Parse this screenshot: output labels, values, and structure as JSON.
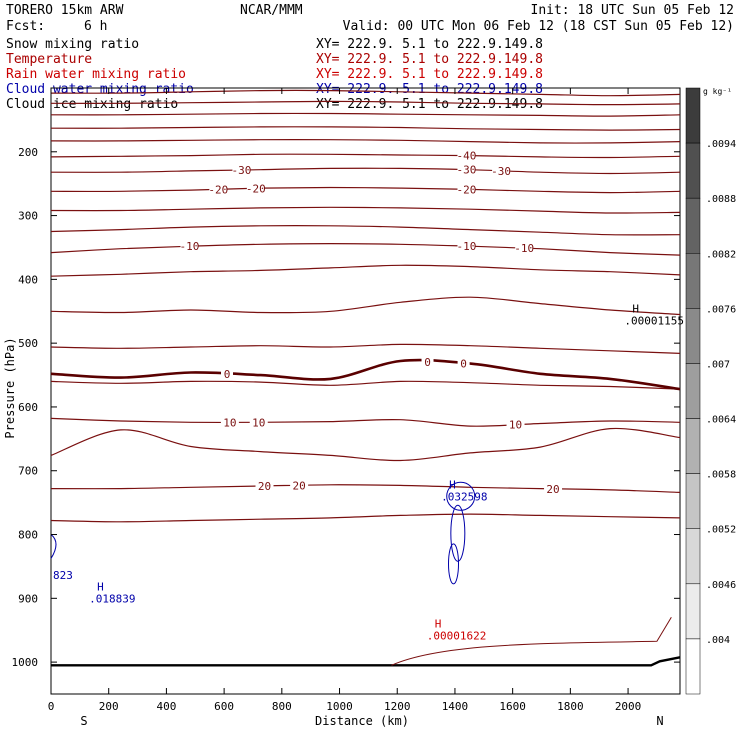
{
  "header": {
    "model": "TORERO  15km ARW",
    "org": "NCAR/MMM",
    "init": "Init: 18 UTC Sun 05 Feb 12",
    "fcst_label": "Fcst:",
    "fcst_value": "6 h",
    "valid": "Valid: 00 UTC Mon 06 Feb 12 (18 CST Sun 05 Feb 12)"
  },
  "legend": [
    {
      "name": "Snow mixing ratio",
      "color": "#000000",
      "xy": "XY= 222.9.  5.1 to 222.9.149.8"
    },
    {
      "name": "Temperature",
      "color": "#aa0000",
      "xy": "XY= 222.9.  5.1 to 222.9.149.8"
    },
    {
      "name": "Rain water mixing ratio",
      "color": "#cc0000",
      "xy": "XY= 222.9.  5.1 to 222.9.149.8"
    },
    {
      "name": "Cloud water mixing ratio",
      "color": "#0000aa",
      "xy": "XY= 222.9.  5.1 to 222.9.149.8"
    },
    {
      "name": "Cloud ice mixing ratio",
      "color": "#000000",
      "xy": "XY= 222.9.  5.1 to 222.9.149.8"
    }
  ],
  "chart_data": {
    "type": "cross-section contour",
    "xlabel": "Distance (km)",
    "ylabel": "Pressure (hPa)",
    "xlim": [
      0,
      2180
    ],
    "ylim": [
      100,
      1050
    ],
    "x_ticks": [
      0,
      200,
      400,
      600,
      800,
      1000,
      1200,
      1400,
      1600,
      1800,
      2000
    ],
    "y_ticks": [
      200,
      300,
      400,
      500,
      600,
      700,
      800,
      900,
      1000
    ],
    "end_labels": {
      "left": "S",
      "right": "N"
    },
    "colorbar": {
      "units": "g kg⁻¹",
      "labels": [
        ".0094",
        ".0088",
        ".0082",
        ".0076",
        ".007",
        ".0064",
        ".0058",
        ".0052",
        ".0046",
        ".004"
      ]
    },
    "temperature_contours": [
      {
        "p": [
          108,
          108,
          106,
          104,
          104,
          106,
          108,
          110,
          112,
          110
        ],
        "labels": []
      },
      {
        "p": [
          124,
          124,
          123,
          122,
          121,
          122,
          124,
          125,
          126,
          125
        ],
        "labels": []
      },
      {
        "p": [
          142,
          142,
          141,
          140,
          140,
          141,
          142,
          143,
          144,
          142
        ],
        "labels": []
      },
      {
        "p": [
          163,
          163,
          162,
          161,
          161,
          162,
          164,
          165,
          166,
          165
        ],
        "labels": []
      },
      {
        "p": [
          183,
          183,
          182,
          181,
          181,
          182,
          184,
          186,
          186,
          184
        ],
        "labels": []
      },
      {
        "p": [
          208,
          207,
          206,
          204,
          204,
          205,
          206,
          208,
          209,
          207
        ],
        "labels": [
          {
            "text": "-40",
            "x": 1440
          }
        ]
      },
      {
        "p": [
          232,
          232,
          230,
          228,
          226,
          226,
          228,
          232,
          234,
          232
        ],
        "labels": [
          {
            "text": "-30",
            "x": 660
          },
          {
            "text": "-30",
            "x": 1440
          },
          {
            "text": "-30",
            "x": 1560
          }
        ]
      },
      {
        "p": [
          262,
          262,
          260,
          257,
          256,
          257,
          259,
          262,
          264,
          262
        ],
        "labels": [
          {
            "text": "-20",
            "x": 580
          },
          {
            "text": "-20",
            "x": 710
          },
          {
            "text": "-20",
            "x": 1440
          }
        ]
      },
      {
        "p": [
          292,
          292,
          290,
          288,
          287,
          288,
          290,
          293,
          296,
          295
        ],
        "labels": []
      },
      {
        "p": [
          325,
          322,
          318,
          316,
          316,
          318,
          322,
          326,
          330,
          330
        ],
        "labels": []
      },
      {
        "p": [
          358,
          352,
          348,
          345,
          344,
          345,
          348,
          352,
          358,
          362
        ],
        "labels": [
          {
            "text": "-10",
            "x": 480
          },
          {
            "text": "-10",
            "x": 1440
          },
          {
            "text": "-10",
            "x": 1640
          }
        ]
      },
      {
        "p": [
          395,
          392,
          388,
          386,
          382,
          378,
          380,
          385,
          388,
          393
        ],
        "labels": []
      },
      {
        "p": [
          450,
          452,
          448,
          452,
          450,
          436,
          428,
          438,
          448,
          455
        ],
        "labels": []
      },
      {
        "p": [
          506,
          508,
          506,
          504,
          506,
          502,
          504,
          508,
          512,
          516
        ],
        "labels": []
      },
      {
        "p": [
          560,
          563,
          560,
          561,
          566,
          560,
          562,
          566,
          568,
          572
        ],
        "labels": []
      },
      {
        "p": [
          618,
          622,
          624,
          624,
          623,
          620,
          630,
          626,
          622,
          624
        ],
        "labels": [
          {
            "text": "10",
            "x": 620
          },
          {
            "text": "10",
            "x": 720
          },
          {
            "text": "10",
            "x": 1610
          }
        ]
      },
      {
        "p": [
          676,
          636,
          662,
          670,
          676,
          684,
          672,
          663,
          634,
          648
        ],
        "labels": []
      },
      {
        "p": [
          728,
          728,
          726,
          724,
          722,
          723,
          726,
          728,
          730,
          734
        ],
        "labels": [
          {
            "text": "20",
            "x": 740
          },
          {
            "text": "20",
            "x": 860
          },
          {
            "text": "20",
            "x": 1740
          }
        ]
      },
      {
        "p": [
          778,
          780,
          778,
          776,
          774,
          770,
          768,
          770,
          772,
          774
        ],
        "labels": []
      }
    ],
    "freezing_level": {
      "value": 0,
      "p": [
        548,
        554,
        546,
        550,
        556,
        528,
        532,
        548,
        556,
        572
      ],
      "labels": [
        {
          "text": "0",
          "x": 610
        },
        {
          "text": "0",
          "x": 1305
        },
        {
          "text": "0",
          "x": 1430
        }
      ]
    },
    "max_labels": [
      {
        "mark": "H",
        "value": ".00001155",
        "x": 2015,
        "p": 452,
        "color": "#000000"
      },
      {
        "mark": "H",
        "value": ".032598",
        "x": 1380,
        "p": 728,
        "color": "#0000aa"
      },
      {
        "mark": "H",
        "value": ".018839",
        "x": 160,
        "p": 888,
        "color": "#0000aa"
      },
      {
        "mark": "H",
        "value": ".00001622",
        "x": 1330,
        "p": 946,
        "color": "#cc0000"
      }
    ],
    "left_edge_label": {
      "value": "823",
      "color": "#0000aa"
    }
  }
}
